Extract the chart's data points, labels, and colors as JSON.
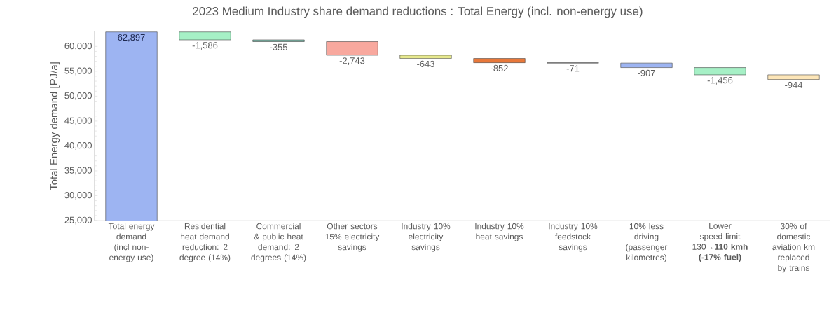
{
  "chart_data": {
    "type": "bar",
    "title": "2023 Medium Industry share demand reductions : Total Energy (incl. non-energy use)",
    "ylabel": "Total Energy demand  [PJ/a]",
    "categories": [
      "Total energy demand (incl non-energy use)",
      "Residential heat demand reduction: 2 degree (14%)",
      "Commercial & public heat demand: 2 degrees (14%)",
      "Other sectors 15% electricity savings",
      "Industry 10% electricity savings",
      "Industry 10% heat savings",
      "Industry 10% feedstock savings",
      "10% less driving (passenger kilometres)",
      "Lower speed limit 130→**110 kmh (-17% fuel)**",
      "30% of domestic aviation km replaced by trains"
    ],
    "values": [
      62897,
      -1586,
      -355,
      -2743,
      -643,
      -852,
      -71,
      -907,
      -1456,
      -944
    ],
    "base": [
      0,
      62897,
      61311,
      60956,
      58213,
      57570,
      56718,
      56647,
      55740,
      54284
    ],
    "colors": [
      "#9db4f2",
      "#a6f0c6",
      "#7fc2b0",
      "#f8a89e",
      "#e6e88e",
      "#e8783a",
      "#8a8a8a",
      "#9db4f2",
      "#a6f0c6",
      "#fde6b8"
    ],
    "value_labels": [
      "62,897",
      "-1,586",
      "-355",
      "-2,743",
      "-643",
      "-852",
      "-71",
      "-907",
      "-1,456",
      "-944"
    ],
    "ylim": [
      25000,
      63000
    ],
    "yticks": [
      {
        "value": 25000,
        "label": "25,000"
      },
      {
        "value": 30000,
        "label": "30,000"
      },
      {
        "value": 35000,
        "label": "35,000"
      },
      {
        "value": 40000,
        "label": "40,000"
      },
      {
        "value": 45000,
        "label": "45,000"
      },
      {
        "value": 50000,
        "label": "50,000"
      },
      {
        "value": 55000,
        "label": "55,000"
      },
      {
        "value": 60000,
        "label": "60,000"
      }
    ],
    "grid": false
  }
}
